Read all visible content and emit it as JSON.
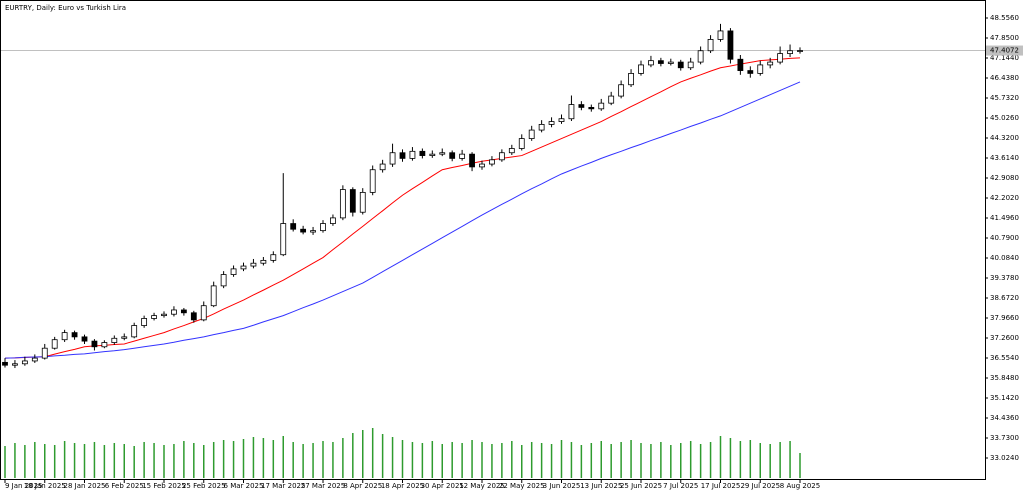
{
  "chart_data": {
    "type": "candlestick",
    "title": "EURTRY, Daily:  Euro vs Turkish Lira",
    "categories": [
      "9 Jan 2025",
      null,
      null,
      null,
      "18 Jan 2025",
      null,
      null,
      null,
      "28 Jan 2025",
      null,
      null,
      null,
      "6 Feb 2025",
      null,
      null,
      null,
      "15 Feb 2025",
      null,
      null,
      null,
      "25 Feb 2025",
      null,
      null,
      null,
      "6 Mar 2025",
      null,
      null,
      null,
      "17 Mar 2025",
      null,
      null,
      null,
      "27 Mar 2025",
      null,
      null,
      null,
      "8 Apr 2025",
      null,
      null,
      null,
      "18 Apr 2025",
      null,
      null,
      null,
      "30 Apr 2025",
      null,
      null,
      null,
      "12 May 2025",
      null,
      null,
      null,
      "22 May 2025",
      null,
      null,
      null,
      "3 Jun 2025",
      null,
      null,
      null,
      "13 Jun 2025",
      null,
      null,
      null,
      "25 Jun 2025",
      null,
      null,
      null,
      "7 Jul 2025",
      null,
      null,
      null,
      "17 Jul 2025",
      null,
      null,
      null,
      "29 Jul 2025",
      null,
      null,
      null,
      "8 Aug 2025"
    ],
    "ohlc": [
      [
        36.4,
        36.55,
        36.22,
        36.3
      ],
      [
        36.3,
        36.48,
        36.2,
        36.35
      ],
      [
        36.35,
        36.6,
        36.28,
        36.45
      ],
      [
        36.45,
        36.68,
        36.38,
        36.55
      ],
      [
        36.55,
        37.05,
        36.5,
        36.9
      ],
      [
        36.9,
        37.3,
        36.85,
        37.2
      ],
      [
        37.2,
        37.55,
        37.12,
        37.45
      ],
      [
        37.45,
        37.52,
        37.2,
        37.3
      ],
      [
        37.3,
        37.38,
        37.05,
        37.15
      ],
      [
        37.15,
        37.22,
        36.82,
        36.95
      ],
      [
        36.95,
        37.18,
        36.9,
        37.1
      ],
      [
        37.1,
        37.35,
        37.02,
        37.25
      ],
      [
        37.25,
        37.42,
        37.18,
        37.3
      ],
      [
        37.3,
        37.8,
        37.25,
        37.7
      ],
      [
        37.7,
        38.05,
        37.62,
        37.95
      ],
      [
        37.95,
        38.15,
        37.88,
        38.05
      ],
      [
        38.05,
        38.2,
        37.98,
        38.1
      ],
      [
        38.1,
        38.38,
        38.02,
        38.25
      ],
      [
        38.25,
        38.32,
        38.05,
        38.15
      ],
      [
        38.15,
        38.22,
        37.8,
        37.9
      ],
      [
        37.9,
        38.55,
        37.85,
        38.4
      ],
      [
        38.4,
        39.25,
        38.35,
        39.1
      ],
      [
        39.1,
        39.62,
        39.02,
        39.5
      ],
      [
        39.5,
        39.82,
        39.42,
        39.7
      ],
      [
        39.7,
        39.92,
        39.62,
        39.8
      ],
      [
        39.8,
        40.05,
        39.72,
        39.9
      ],
      [
        39.9,
        40.12,
        39.82,
        40.0
      ],
      [
        40.0,
        40.32,
        39.92,
        40.2
      ],
      [
        40.2,
        43.08,
        40.15,
        41.3
      ],
      [
        41.3,
        41.45,
        41.02,
        41.1
      ],
      [
        41.1,
        41.22,
        40.92,
        41.0
      ],
      [
        41.0,
        41.18,
        40.9,
        41.05
      ],
      [
        41.05,
        41.42,
        40.98,
        41.3
      ],
      [
        41.3,
        41.62,
        41.22,
        41.5
      ],
      [
        41.5,
        42.65,
        41.42,
        42.5
      ],
      [
        42.5,
        42.58,
        41.55,
        41.7
      ],
      [
        41.7,
        42.55,
        41.62,
        42.4
      ],
      [
        42.4,
        43.35,
        42.3,
        43.2
      ],
      [
        43.2,
        43.55,
        43.1,
        43.4
      ],
      [
        43.4,
        44.12,
        43.3,
        43.8
      ],
      [
        43.8,
        43.92,
        43.48,
        43.6
      ],
      [
        43.6,
        44.0,
        43.52,
        43.85
      ],
      [
        43.85,
        43.95,
        43.6,
        43.7
      ],
      [
        43.7,
        43.88,
        43.62,
        43.75
      ],
      [
        43.75,
        43.95,
        43.68,
        43.8
      ],
      [
        43.8,
        43.88,
        43.5,
        43.6
      ],
      [
        43.6,
        43.9,
        43.52,
        43.75
      ],
      [
        43.75,
        43.82,
        43.15,
        43.3
      ],
      [
        43.3,
        43.52,
        43.2,
        43.4
      ],
      [
        43.4,
        43.68,
        43.32,
        43.55
      ],
      [
        43.55,
        43.92,
        43.48,
        43.8
      ],
      [
        43.8,
        44.08,
        43.72,
        43.95
      ],
      [
        43.95,
        44.45,
        43.88,
        44.3
      ],
      [
        44.3,
        44.75,
        44.22,
        44.6
      ],
      [
        44.6,
        44.95,
        44.52,
        44.8
      ],
      [
        44.8,
        45.05,
        44.7,
        44.9
      ],
      [
        44.9,
        45.15,
        44.82,
        45.0
      ],
      [
        45.0,
        45.82,
        44.92,
        45.5
      ],
      [
        45.5,
        45.62,
        45.3,
        45.4
      ],
      [
        45.4,
        45.5,
        45.25,
        45.35
      ],
      [
        45.35,
        45.7,
        45.28,
        45.55
      ],
      [
        45.55,
        45.95,
        45.48,
        45.8
      ],
      [
        45.8,
        46.35,
        45.72,
        46.2
      ],
      [
        46.2,
        46.75,
        46.12,
        46.6
      ],
      [
        46.6,
        47.05,
        46.52,
        46.9
      ],
      [
        46.9,
        47.22,
        46.82,
        47.05
      ],
      [
        47.05,
        47.15,
        46.85,
        46.95
      ],
      [
        46.95,
        47.12,
        46.88,
        47.0
      ],
      [
        47.0,
        47.08,
        46.7,
        46.8
      ],
      [
        46.8,
        47.15,
        46.72,
        47.0
      ],
      [
        47.0,
        47.55,
        46.92,
        47.4
      ],
      [
        47.4,
        47.95,
        47.32,
        47.8
      ],
      [
        47.8,
        48.35,
        47.72,
        48.1
      ],
      [
        48.1,
        48.2,
        46.95,
        47.1
      ],
      [
        47.1,
        47.25,
        46.55,
        46.7
      ],
      [
        46.7,
        46.85,
        46.45,
        46.6
      ],
      [
        46.6,
        47.05,
        46.52,
        46.9
      ],
      [
        46.9,
        47.15,
        46.78,
        47.0
      ],
      [
        47.0,
        47.55,
        46.92,
        47.3
      ],
      [
        47.3,
        47.62,
        47.18,
        47.4
      ],
      [
        47.4,
        47.52,
        47.3,
        47.4072
      ]
    ],
    "up_color": "#ffffff",
    "down_color": "#000000",
    "series": [
      {
        "color": "#ff0000",
        "values": [
          36.55,
          36.56,
          36.57,
          36.59,
          36.6,
          36.69,
          36.78,
          36.86,
          36.95,
          36.98,
          37.0,
          37.03,
          37.05,
          37.15,
          37.25,
          37.35,
          37.45,
          37.58,
          37.7,
          37.83,
          37.95,
          38.11,
          38.28,
          38.44,
          38.6,
          38.78,
          38.95,
          39.13,
          39.3,
          39.5,
          39.7,
          39.9,
          40.1,
          40.38,
          40.65,
          40.93,
          41.2,
          41.48,
          41.75,
          42.03,
          42.3,
          42.53,
          42.75,
          42.98,
          43.2,
          43.28,
          43.35,
          43.43,
          43.5,
          43.55,
          43.6,
          43.65,
          43.7,
          43.85,
          44.0,
          44.15,
          44.3,
          44.45,
          44.6,
          44.75,
          44.9,
          45.08,
          45.25,
          45.43,
          45.6,
          45.78,
          45.95,
          46.13,
          46.3,
          46.43,
          46.55,
          46.68,
          46.8,
          46.86,
          46.93,
          46.99,
          47.05,
          47.08,
          47.1,
          47.13,
          47.15
        ]
      },
      {
        "color": "#3333ff",
        "values": [
          36.55,
          36.56,
          36.58,
          36.59,
          36.6,
          36.63,
          36.65,
          36.68,
          36.7,
          36.74,
          36.78,
          36.81,
          36.85,
          36.9,
          36.95,
          37.0,
          37.05,
          37.11,
          37.18,
          37.24,
          37.3,
          37.38,
          37.45,
          37.53,
          37.6,
          37.71,
          37.83,
          37.94,
          38.05,
          38.19,
          38.33,
          38.46,
          38.6,
          38.75,
          38.9,
          39.05,
          39.2,
          39.4,
          39.6,
          39.8,
          40.0,
          40.2,
          40.4,
          40.6,
          40.8,
          41.0,
          41.2,
          41.4,
          41.6,
          41.79,
          41.98,
          42.16,
          42.35,
          42.53,
          42.7,
          42.88,
          43.05,
          43.19,
          43.33,
          43.46,
          43.6,
          43.73,
          43.85,
          43.98,
          44.1,
          44.23,
          44.35,
          44.48,
          44.6,
          44.73,
          44.85,
          44.98,
          45.1,
          45.25,
          45.4,
          45.55,
          45.7,
          45.85,
          46.0,
          46.15,
          46.3
        ]
      }
    ],
    "volume": {
      "color": "#2e9b2e",
      "ylim": [
        0,
        100
      ],
      "values": [
        32,
        35,
        33,
        36,
        34,
        33,
        37,
        35,
        34,
        36,
        33,
        35,
        34,
        32,
        36,
        35,
        33,
        34,
        37,
        35,
        33,
        36,
        38,
        37,
        39,
        41,
        40,
        38,
        42,
        36,
        34,
        35,
        37,
        36,
        40,
        45,
        48,
        50,
        44,
        41,
        38,
        36,
        35,
        37,
        34,
        36,
        35,
        38,
        36,
        34,
        35,
        37,
        33,
        36,
        35,
        34,
        38,
        36,
        33,
        35,
        37,
        34,
        36,
        38,
        35,
        34,
        36,
        33,
        35,
        37,
        34,
        36,
        42,
        40,
        37,
        38,
        35,
        34,
        36,
        37,
        25
      ]
    },
    "ylim": [
      32.318,
      49.121
    ],
    "yticks": [
      {
        "value": 48.556,
        "label": "48.5560"
      },
      {
        "value": 47.85,
        "label": "47.8500"
      },
      {
        "value": 47.144,
        "label": "47.1440"
      },
      {
        "value": 46.438,
        "label": "46.4380"
      },
      {
        "value": 45.732,
        "label": "45.7320"
      },
      {
        "value": 45.026,
        "label": "45.0260"
      },
      {
        "value": 44.32,
        "label": "44.3200"
      },
      {
        "value": 43.614,
        "label": "43.6140"
      },
      {
        "value": 42.908,
        "label": "42.9080"
      },
      {
        "value": 42.202,
        "label": "42.2020"
      },
      {
        "value": 41.496,
        "label": "41.4960"
      },
      {
        "value": 40.79,
        "label": "40.7900"
      },
      {
        "value": 40.084,
        "label": "40.0840"
      },
      {
        "value": 39.378,
        "label": "39.3780"
      },
      {
        "value": 38.672,
        "label": "38.6720"
      },
      {
        "value": 37.966,
        "label": "37.9660"
      },
      {
        "value": 37.26,
        "label": "37.2600"
      },
      {
        "value": 36.554,
        "label": "36.5540"
      },
      {
        "value": 35.848,
        "label": "35.8480"
      },
      {
        "value": 35.142,
        "label": "35.1420"
      },
      {
        "value": 34.436,
        "label": "34.4360"
      },
      {
        "value": 33.73,
        "label": "33.7300"
      },
      {
        "value": 33.024,
        "label": "33.0240"
      }
    ],
    "grid": false
  }
}
